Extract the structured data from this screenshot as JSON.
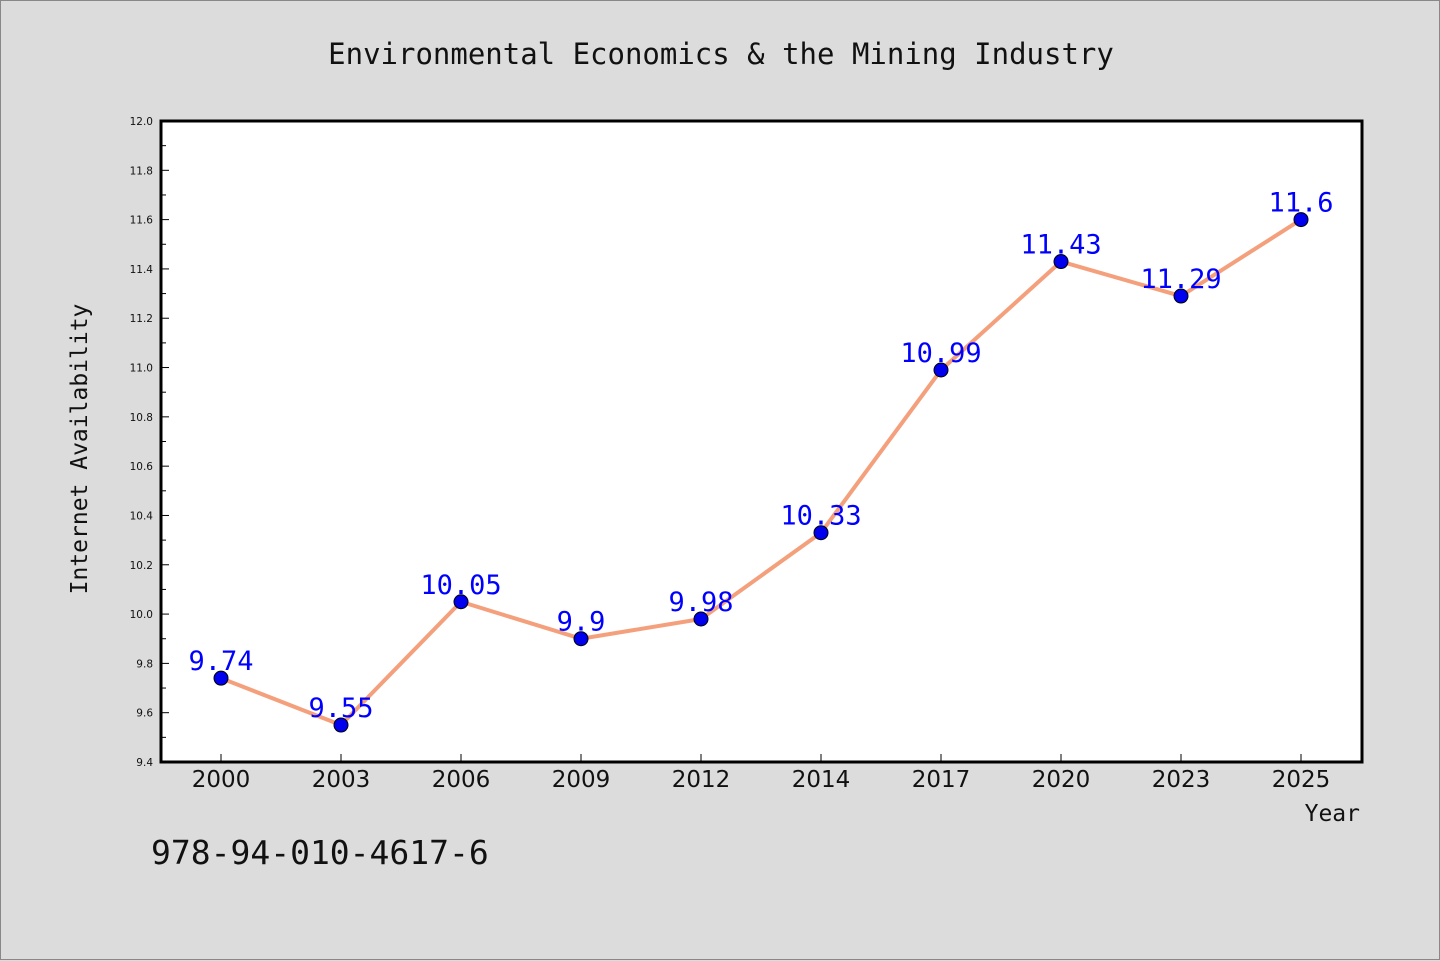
{
  "chart_data": {
    "type": "line",
    "title": "Environmental Economics & the Mining Industry",
    "xlabel": "Year",
    "ylabel": "Internet Availability",
    "categories": [
      "2000",
      "2003",
      "2006",
      "2009",
      "2012",
      "2014",
      "2017",
      "2020",
      "2023",
      "2025"
    ],
    "series": [
      {
        "values": [
          9.74,
          9.55,
          10.05,
          9.9,
          9.98,
          10.33,
          10.99,
          11.43,
          11.29,
          11.6
        ],
        "labels": [
          "9.74",
          "9.55",
          "10.05",
          "9.9",
          "9.98",
          "10.33",
          "10.99",
          "11.43",
          "11.29",
          "11.6"
        ]
      }
    ],
    "ylim": [
      9.4,
      12.0
    ],
    "yticks": [
      "9.4",
      "9.6",
      "9.8",
      "10.0",
      "10.2",
      "10.4",
      "10.6",
      "10.8",
      "11.0",
      "11.2",
      "11.4",
      "11.6",
      "11.8",
      "12.0"
    ],
    "grid": false,
    "line_color": "#f4a07c",
    "marker_color": "#0000ee",
    "label_color": "#0000ff"
  },
  "footer": {
    "isbn": "978-94-010-4617-6"
  }
}
